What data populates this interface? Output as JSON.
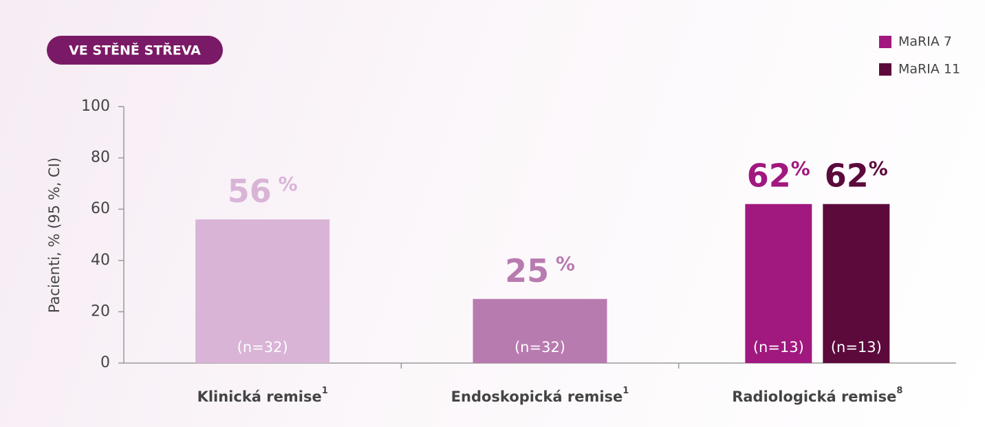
{
  "chart_data": {
    "type": "bar",
    "badge": "VE STĚNĚ STŘEVA",
    "y_label": "Pacienti, % (95 %, CI)",
    "categories": [
      "Klinická remise",
      "Endoskopická remise",
      "Radiologická remise"
    ],
    "category_notes": [
      "1",
      "1",
      "8"
    ],
    "values": [
      56,
      25,
      null
    ],
    "value_labels": [
      "56 %",
      "25 %",
      null
    ],
    "n_labels": [
      "(n=32)",
      "(n=32)",
      null
    ],
    "colors": [
      "#d9b4d7",
      "#b87bb0",
      null
    ],
    "series": [
      {
        "name": "MaRIA 7",
        "color": "#a1187f",
        "values": [
          null,
          null,
          62
        ],
        "value_labels": [
          null,
          null,
          "62%"
        ],
        "n_labels": [
          null,
          null,
          "(n=13)"
        ]
      },
      {
        "name": "MaRIA 11",
        "color": "#5c0a3c",
        "values": [
          null,
          null,
          62
        ],
        "value_labels": [
          null,
          null,
          "62%"
        ],
        "n_labels": [
          null,
          null,
          "(n=13)"
        ]
      }
    ],
    "ylim": [
      0,
      100
    ],
    "yticks": [
      0,
      20,
      40,
      60,
      80,
      100
    ],
    "legend": "top-right"
  }
}
